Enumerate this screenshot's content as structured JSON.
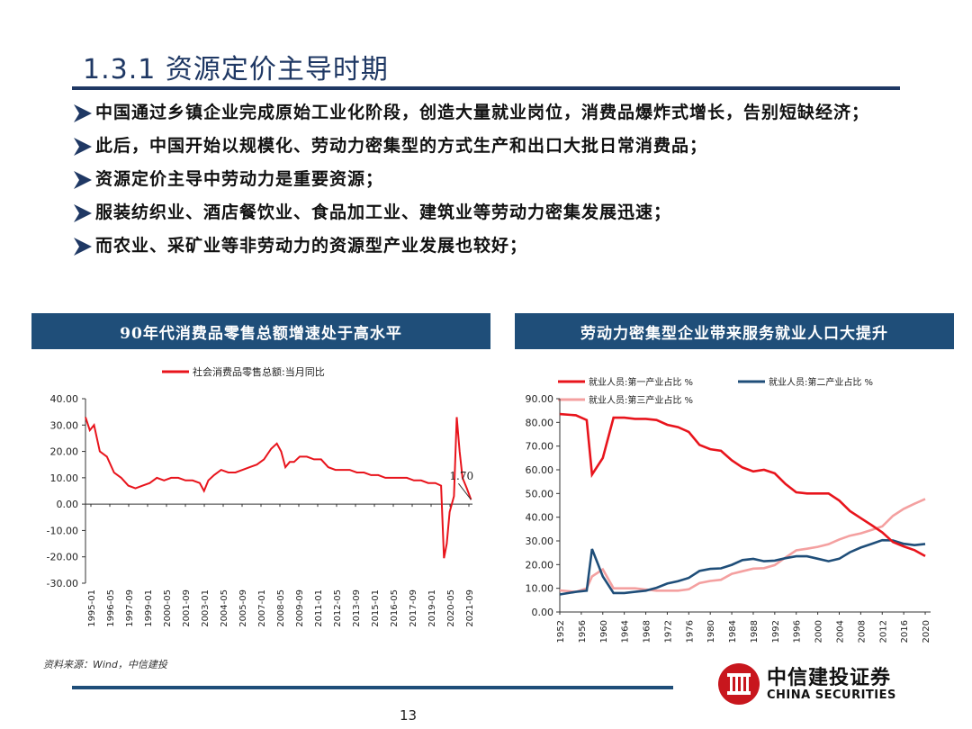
{
  "slide": {
    "title": "1.3.1 资源定价主导时期",
    "page_number": "13",
    "source": "资料来源：Wind，中信建投",
    "brand_cn": "中信建投证券",
    "brand_en": "CHINA SECURITIES",
    "accent_color": "#1f4e79"
  },
  "bullets": [
    "中国通过乡镇企业完成原始工业化阶段，创造大量就业岗位，消费品爆炸式增长，告别短缺经济；",
    "此后，中国开始以规模化、劳动力密集型的方式生产和出口大批日常消费品；",
    "资源定价主导中劳动力是重要资源；",
    "服装纺织业、酒店餐饮业、食品加工业、建筑业等劳动力密集发展迅速；",
    "而农业、采矿业等非劳动力的资源型产业发展也较好；"
  ],
  "panels": {
    "left_title": "90年代消费品零售总额增速处于高水平",
    "right_title": "劳动力密集型企业带来服务就业人口大提升"
  },
  "chart_data": [
    {
      "type": "line",
      "title": "",
      "legend": [
        "社会消费品零售总额:当月同比"
      ],
      "legend_placement": "top",
      "ylim": [
        -30,
        40
      ],
      "yticks": [
        "40.00",
        "30.00",
        "20.00",
        "10.00",
        "0.00",
        "-10.00",
        "-20.00",
        "-30.00"
      ],
      "xticks": [
        "1995-01",
        "1996-05",
        "1997-09",
        "1999-01",
        "2000-05",
        "2001-09",
        "2003-01",
        "2004-05",
        "2005-09",
        "2007-01",
        "2008-05",
        "2009-09",
        "2011-01",
        "2012-05",
        "2013-09",
        "2015-01",
        "2016-05",
        "2017-09",
        "2019-01",
        "2020-05",
        "2021-09"
      ],
      "annotation": "1.70",
      "series": [
        {
          "name": "社会消费品零售总额:当月同比",
          "color": "#e8141c",
          "x": [
            1995.0,
            1995.3,
            1995.6,
            1996.0,
            1996.5,
            1997.0,
            1997.5,
            1998.0,
            1998.5,
            1999.0,
            1999.5,
            2000.0,
            2000.5,
            2001.0,
            2001.5,
            2002.0,
            2002.5,
            2003.0,
            2003.3,
            2003.6,
            2004.0,
            2004.5,
            2005.0,
            2005.5,
            2006.0,
            2006.5,
            2007.0,
            2007.5,
            2008.0,
            2008.4,
            2008.7,
            2009.0,
            2009.3,
            2009.6,
            2010.0,
            2010.5,
            2011.0,
            2011.5,
            2012.0,
            2012.5,
            2013.0,
            2013.5,
            2014.0,
            2014.5,
            2015.0,
            2015.5,
            2016.0,
            2016.5,
            2017.0,
            2017.5,
            2018.0,
            2018.5,
            2019.0,
            2019.5,
            2019.9,
            2020.1,
            2020.3,
            2020.5,
            2020.8,
            2021.0,
            2021.2,
            2021.4,
            2021.7,
            2022.0
          ],
          "y": [
            33,
            28,
            30,
            20,
            18,
            12,
            10,
            7,
            6,
            7,
            8,
            10,
            9,
            10,
            10,
            9,
            9,
            8,
            5,
            9,
            11,
            13,
            12,
            12,
            13,
            14,
            15,
            17,
            21,
            23,
            20,
            14,
            16,
            16,
            18,
            18,
            17,
            17,
            14,
            13,
            13,
            13,
            12,
            12,
            11,
            11,
            10,
            10,
            10,
            10,
            9,
            9,
            8,
            8,
            7,
            -20.5,
            -15,
            -3,
            3,
            33,
            20,
            10,
            6,
            1.7
          ]
        }
      ]
    },
    {
      "type": "line",
      "title": "",
      "legend": [
        "就业人员:第一产业占比 %",
        "就业人员:第二产业占比 %",
        "就业人员:第三产业占比 %"
      ],
      "legend_placement": "top",
      "ylim": [
        0,
        90
      ],
      "yticks": [
        "90.00",
        "80.00",
        "70.00",
        "60.00",
        "50.00",
        "40.00",
        "30.00",
        "20.00",
        "10.00",
        "0.00"
      ],
      "xticks": [
        "1952",
        "1956",
        "1960",
        "1964",
        "1968",
        "1972",
        "1976",
        "1980",
        "1984",
        "1988",
        "1992",
        "1996",
        "2000",
        "2004",
        "2008",
        "2012",
        "2016",
        "2020"
      ],
      "series": [
        {
          "name": "就业人员:第一产业占比 %",
          "color": "#e8141c",
          "x": [
            1952,
            1955,
            1957,
            1958,
            1960,
            1962,
            1964,
            1966,
            1968,
            1970,
            1972,
            1974,
            1976,
            1978,
            1980,
            1982,
            1984,
            1986,
            1988,
            1990,
            1992,
            1994,
            1996,
            1998,
            2000,
            2002,
            2004,
            2006,
            2008,
            2010,
            2012,
            2014,
            2016,
            2018,
            2020
          ],
          "y": [
            83.5,
            83,
            81,
            58,
            65,
            82,
            82,
            81.5,
            81.5,
            81,
            79,
            78,
            76,
            70.5,
            68.7,
            68,
            64,
            61,
            59.3,
            60,
            58.5,
            54,
            50.5,
            50,
            50,
            50,
            47,
            42.6,
            39.6,
            36.7,
            33.6,
            29.5,
            27.7,
            26.1,
            23.6
          ]
        },
        {
          "name": "就业人员:第二产业占比 %",
          "color": "#1f4e79",
          "x": [
            1952,
            1955,
            1957,
            1958,
            1960,
            1962,
            1964,
            1966,
            1968,
            1970,
            1972,
            1974,
            1976,
            1978,
            1980,
            1982,
            1984,
            1986,
            1988,
            1990,
            1992,
            1994,
            1996,
            1998,
            2000,
            2002,
            2004,
            2006,
            2008,
            2010,
            2012,
            2014,
            2016,
            2018,
            2020
          ],
          "y": [
            7.4,
            8.5,
            9,
            26.6,
            15,
            8,
            8,
            8.5,
            9,
            10.2,
            12,
            13,
            14.4,
            17.3,
            18.2,
            18.4,
            19.9,
            21.9,
            22.4,
            21.4,
            21.7,
            22.7,
            23.5,
            23.5,
            22.5,
            21.4,
            22.5,
            25.2,
            27.2,
            28.7,
            30.3,
            30.2,
            28.8,
            28.2,
            28.7
          ]
        },
        {
          "name": "就业人员:第三产业占比 %",
          "color": "#f4a0a0",
          "x": [
            1952,
            1955,
            1957,
            1958,
            1960,
            1962,
            1964,
            1966,
            1968,
            1970,
            1972,
            1974,
            1976,
            1978,
            1980,
            1982,
            1984,
            1986,
            1988,
            1990,
            1992,
            1994,
            1996,
            1998,
            2000,
            2002,
            2004,
            2006,
            2008,
            2010,
            2012,
            2014,
            2016,
            2018,
            2020
          ],
          "y": [
            9.1,
            8.5,
            10,
            15,
            18,
            10,
            10,
            10,
            9.5,
            9,
            9,
            9,
            9.6,
            12.2,
            13.1,
            13.6,
            16.1,
            17.2,
            18.3,
            18.5,
            19.8,
            23,
            26,
            26.7,
            27.5,
            28.6,
            30.6,
            32.2,
            33.2,
            34.6,
            36.1,
            40.6,
            43.5,
            45.7,
            47.7
          ]
        }
      ]
    }
  ]
}
